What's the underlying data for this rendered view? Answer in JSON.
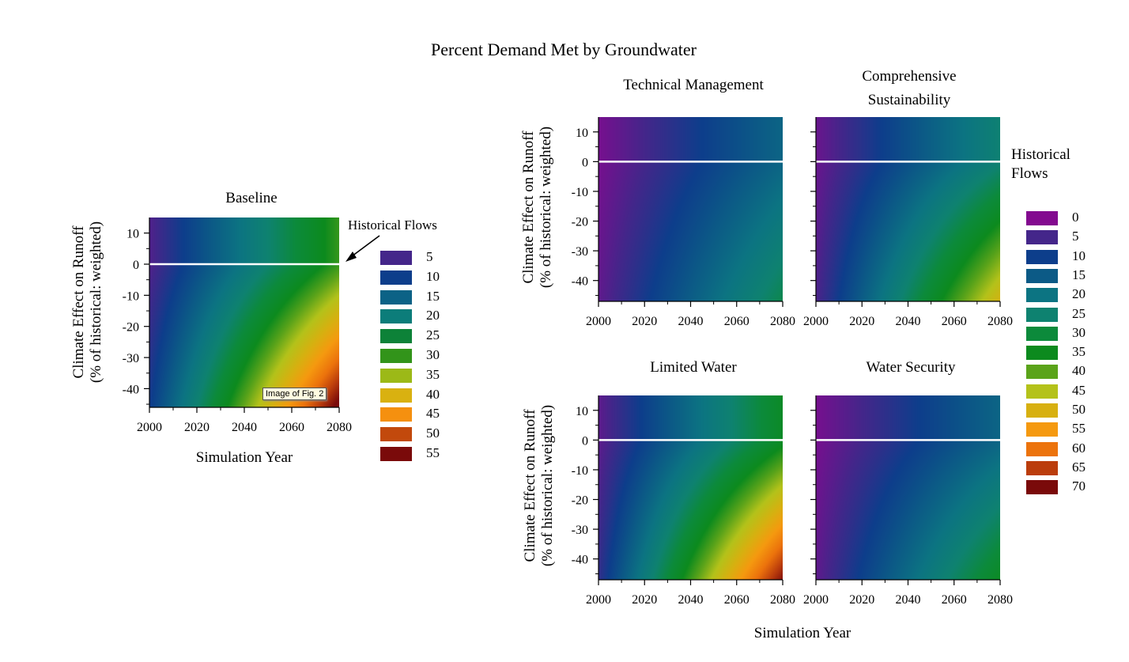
{
  "figure_title": "Percent Demand Met by Groundwater",
  "annotation_historical_left": "Historical Flows",
  "annotation_historical_right_line1": "Historical",
  "annotation_historical_right_line2": "Flows",
  "image_label": "Image of Fig. 2",
  "y_axis_label_line1": "Climate Effect on Runoff",
  "y_axis_label_line2": "(% of historical: weighted)",
  "x_axis_label": "Simulation Year",
  "colors": {
    "historical_line": "#ffffff",
    "arrow": "#000000"
  },
  "legend_left": [
    {
      "label": "5",
      "color": "#44268a"
    },
    {
      "label": "10",
      "color": "#0d3e8b"
    },
    {
      "label": "15",
      "color": "#0c6286"
    },
    {
      "label": "20",
      "color": "#0c7d7a"
    },
    {
      "label": "25",
      "color": "#0d8238"
    },
    {
      "label": "30",
      "color": "#32941a"
    },
    {
      "label": "35",
      "color": "#9cb917"
    },
    {
      "label": "40",
      "color": "#d9b110"
    },
    {
      "label": "45",
      "color": "#f5900f"
    },
    {
      "label": "50",
      "color": "#c2490c"
    },
    {
      "label": "55",
      "color": "#7a0a0a"
    }
  ],
  "legend_right": [
    {
      "label": "0",
      "color": "#830a8f"
    },
    {
      "label": "5",
      "color": "#44268a"
    },
    {
      "label": "10",
      "color": "#0d3e8b"
    },
    {
      "label": "15",
      "color": "#0c5a86"
    },
    {
      "label": "20",
      "color": "#0c7482"
    },
    {
      "label": "25",
      "color": "#0e8270"
    },
    {
      "label": "30",
      "color": "#0c8a3b"
    },
    {
      "label": "35",
      "color": "#0c8a1e"
    },
    {
      "label": "40",
      "color": "#5aa31a"
    },
    {
      "label": "45",
      "color": "#b4c21a"
    },
    {
      "label": "50",
      "color": "#d7b010"
    },
    {
      "label": "55",
      "color": "#f5990f"
    },
    {
      "label": "60",
      "color": "#ec730c"
    },
    {
      "label": "65",
      "color": "#bb3d0c"
    },
    {
      "label": "70",
      "color": "#7a0a0a"
    }
  ],
  "chart_data": [
    {
      "type": "heatmap",
      "title": "Baseline",
      "xlabel": "Simulation Year",
      "ylabel": "Climate Effect on Runoff (% of historical: weighted)",
      "xlim": [
        2000,
        2080
      ],
      "ylim": [
        -46,
        15
      ],
      "xticks": [
        "2000",
        "2020",
        "2040",
        "2060",
        "2080"
      ],
      "yticks": [
        "10",
        "0",
        "-10",
        "-20",
        "-30",
        "-40"
      ],
      "historical_flows_y": 0,
      "surface": {
        "base": 4,
        "slope_year": 0.42,
        "slope_dry": 0.12,
        "cross": 0.0078
      }
    },
    {
      "type": "heatmap",
      "title": "Technical Management",
      "xlim": [
        2000,
        2080
      ],
      "ylim": [
        -47,
        15
      ],
      "xticks": [
        "2000",
        "2020",
        "2040",
        "2060",
        "2080"
      ],
      "yticks": [
        "10",
        "0",
        "-10",
        "-20",
        "-30",
        "-40"
      ],
      "historical_flows_y": 0,
      "surface": {
        "base": 1,
        "slope_year": 0.2,
        "slope_dry": 0.04,
        "cross": 0.0025
      }
    },
    {
      "type": "heatmap",
      "title": "Comprehensive Sustainability",
      "xlim": [
        2000,
        2080
      ],
      "ylim": [
        -47,
        15
      ],
      "xticks": [
        "2000",
        "2020",
        "2040",
        "2060",
        "2080"
      ],
      "yticks": [],
      "historical_flows_y": 0,
      "surface": {
        "base": 2,
        "slope_year": 0.28,
        "slope_dry": 0.05,
        "cross": 0.006
      }
    },
    {
      "type": "heatmap",
      "title": "Limited Water",
      "xlim": [
        2000,
        2080
      ],
      "ylim": [
        -47,
        15
      ],
      "xticks": [
        "2000",
        "2020",
        "2040",
        "2060",
        "2080"
      ],
      "yticks": [
        "10",
        "0",
        "-10",
        "-20",
        "-30",
        "-40"
      ],
      "historical_flows_y": 0,
      "surface": {
        "base": 3,
        "slope_year": 0.38,
        "slope_dry": 0.08,
        "cross": 0.0085
      }
    },
    {
      "type": "heatmap",
      "title": "Water Security",
      "xlim": [
        2000,
        2080
      ],
      "ylim": [
        -47,
        15
      ],
      "xticks": [
        "2000",
        "2020",
        "2040",
        "2060",
        "2080"
      ],
      "yticks": [],
      "historical_flows_y": 0,
      "surface": {
        "base": 1,
        "slope_year": 0.2,
        "slope_dry": 0.04,
        "cross": 0.004
      }
    }
  ]
}
